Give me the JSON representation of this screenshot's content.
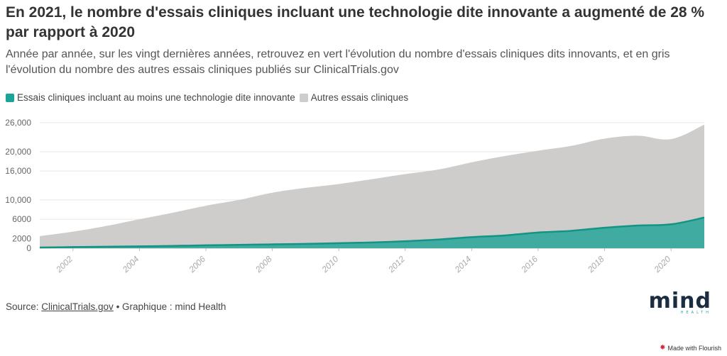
{
  "header": {
    "title": "En 2021, le nombre d'essais cliniques incluant une technologie dite innovante a augmenté de 28 % par rapport à 2020",
    "subtitle": "Année par année, sur les vingt dernières années, retrouvez en vert l'évolution du nombre d'essais cliniques dits innovants, et en gris l'évolution du nombre des autres essais cliniques publiés sur ClinicalTrials.gov"
  },
  "legend": {
    "items": [
      {
        "label": "Essais cliniques incluant au moins une technologie dite innovante",
        "color": "#1aa396"
      },
      {
        "label": "Autres essais cliniques",
        "color": "#cfcdcb"
      }
    ]
  },
  "footer": {
    "source_prefix": "Source: ",
    "source_link": "ClinicalTrials.gov",
    "credit": " • Graphique : mind Health"
  },
  "logo": {
    "word": "mind",
    "sub": "HEALTH"
  },
  "flourish": {
    "label": "Made with Flourish",
    "icon": "flourish-icon"
  },
  "chart_data": {
    "type": "area",
    "stacked": true,
    "x": [
      2001,
      2002,
      2003,
      2004,
      2005,
      2006,
      2007,
      2008,
      2009,
      2010,
      2011,
      2012,
      2013,
      2014,
      2015,
      2016,
      2017,
      2018,
      2019,
      2020,
      2021
    ],
    "series": [
      {
        "name": "Essais cliniques incluant au moins une technologie dite innovante",
        "color": "#1aa396",
        "values": [
          150,
          230,
          310,
          380,
          480,
          600,
          700,
          800,
          900,
          1050,
          1200,
          1450,
          1800,
          2300,
          2650,
          3250,
          3600,
          4250,
          4700,
          4950,
          6350
        ]
      },
      {
        "name": "Autres essais cliniques",
        "color": "#cfcdcb",
        "values": [
          2350,
          3200,
          4290,
          5620,
          6870,
          8200,
          9300,
          10700,
          11600,
          12250,
          13100,
          13900,
          14500,
          15500,
          16450,
          16950,
          17600,
          18450,
          18600,
          17650,
          19250
        ]
      }
    ],
    "ylim": [
      0,
      26000
    ],
    "yticks": [
      0,
      2000,
      6000,
      10000,
      16000,
      20000,
      26000
    ],
    "ytick_labels": [
      "0",
      "2000",
      "6000",
      "10,000",
      "16,000",
      "20,000",
      "26,000"
    ],
    "xticks": [
      2002,
      2004,
      2006,
      2008,
      2010,
      2012,
      2014,
      2016,
      2018,
      2020
    ],
    "xlim": [
      2001,
      2021
    ],
    "grid": true
  }
}
